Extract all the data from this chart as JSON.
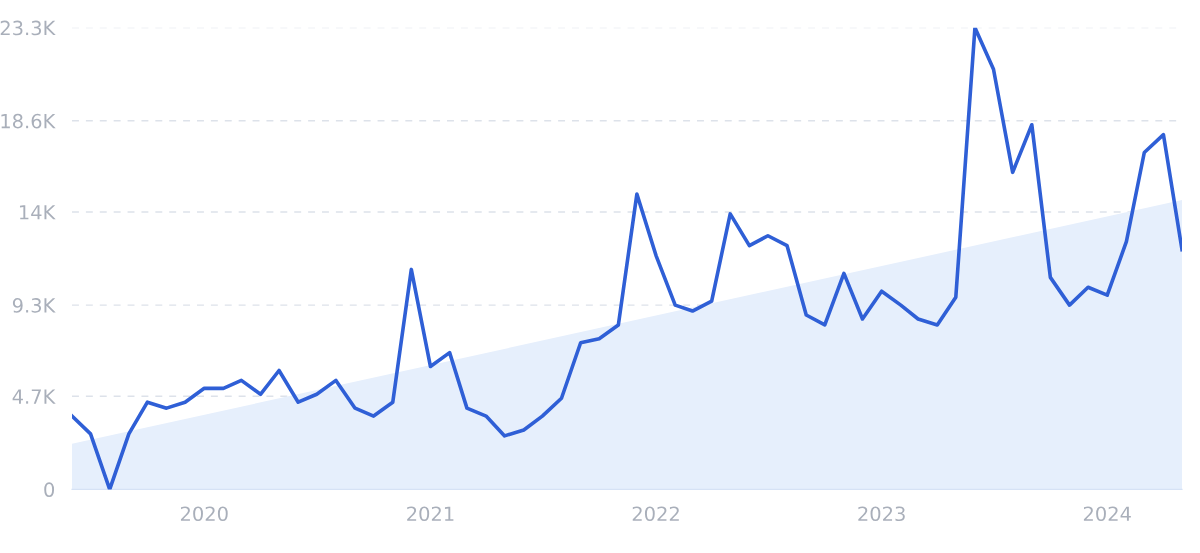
{
  "chart_data": {
    "type": "line",
    "x": [
      "2019-06",
      "2019-07",
      "2019-08",
      "2019-09",
      "2019-10",
      "2019-11",
      "2019-12",
      "2020-01",
      "2020-02",
      "2020-03",
      "2020-04",
      "2020-05",
      "2020-06",
      "2020-07",
      "2020-08",
      "2020-09",
      "2020-10",
      "2020-11",
      "2020-12",
      "2021-01",
      "2021-02",
      "2021-03",
      "2021-04",
      "2021-05",
      "2021-06",
      "2021-07",
      "2021-08",
      "2021-09",
      "2021-10",
      "2021-11",
      "2021-12",
      "2022-01",
      "2022-02",
      "2022-03",
      "2022-04",
      "2022-05",
      "2022-06",
      "2022-07",
      "2022-08",
      "2022-09",
      "2022-10",
      "2022-11",
      "2022-12",
      "2023-01",
      "2023-02",
      "2023-03",
      "2023-04",
      "2023-05",
      "2023-06",
      "2023-07",
      "2023-08",
      "2023-09",
      "2023-10",
      "2023-11",
      "2023-12",
      "2024-01",
      "2024-02",
      "2024-03",
      "2024-04",
      "2024-05"
    ],
    "series": [
      {
        "color": "#2f5fd6",
        "values": [
          3700,
          2800,
          0,
          2800,
          4400,
          4100,
          4400,
          5100,
          5100,
          5500,
          4800,
          6000,
          4400,
          4800,
          5500,
          4100,
          3700,
          4400,
          11100,
          6200,
          6900,
          4100,
          3700,
          2700,
          3000,
          3700,
          4600,
          7400,
          7600,
          8300,
          14900,
          11800,
          9300,
          9000,
          9500,
          13900,
          12300,
          12800,
          12300,
          8800,
          8300,
          10900,
          8600,
          10000,
          9300,
          8600,
          8300,
          9700,
          23300,
          21200,
          16000,
          18400,
          10700,
          9300,
          10200,
          9800,
          12500,
          17000,
          17900,
          12100
        ]
      },
      {
        "type": "area",
        "color": "#e6effc",
        "x": [
          "2019-06",
          "2024-05"
        ],
        "values": [
          2300,
          14600
        ]
      }
    ],
    "xlim": [
      "2019-06",
      "2024-05"
    ],
    "xticks": [
      {
        "value": "2020-01",
        "label": "2020"
      },
      {
        "value": "2021-01",
        "label": "2021"
      },
      {
        "value": "2022-01",
        "label": "2022"
      },
      {
        "value": "2023-01",
        "label": "2023"
      },
      {
        "value": "2024-01",
        "label": "2024"
      }
    ],
    "ylim": [
      0,
      23300
    ],
    "yticks": [
      {
        "value": 0,
        "label": "0"
      },
      {
        "value": 4700,
        "label": "4.7K"
      },
      {
        "value": 9300,
        "label": "9.3K"
      },
      {
        "value": 14000,
        "label": "14K"
      },
      {
        "value": 18600,
        "label": "18.6K"
      },
      {
        "value": 23300,
        "label": "23.3K"
      }
    ],
    "grid": "y",
    "line_style": "solid"
  }
}
